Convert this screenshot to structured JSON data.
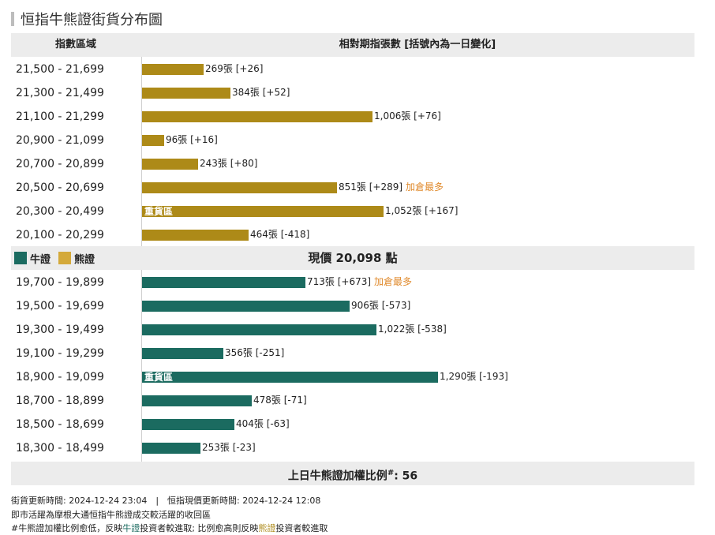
{
  "title": "恒指牛熊證街貨分布圖",
  "header": {
    "left": "指數區域",
    "right": "相對期指張數 [括號內為一日變化]"
  },
  "legend": {
    "bull": "牛證",
    "bear": "熊證",
    "bull_color": "#1b6b60",
    "bear_color": "#ad8a18"
  },
  "price_label": "現價 20,098 點",
  "ratio": {
    "prefix": "上日牛熊證加權比例",
    "mark": "#",
    "suffix": ": 56"
  },
  "footer": {
    "line1": "街貨更新時間: 2024-12-24 23:04　|　恒指現價更新時間: 2024-12-24 12:08",
    "line2": "即市活躍為摩根大通恒指牛熊證成交較活躍的收回區",
    "line3_a": "#牛熊證加權比例愈低，反映",
    "line3_b": "牛證",
    "line3_c": "投資者較進取; 比例愈高則反映",
    "line3_d": "熊證",
    "line3_e": "投資者較進取"
  },
  "chart_data": {
    "type": "bar",
    "orientation": "horizontal",
    "title": "恒指牛熊證街貨分布圖",
    "xlabel": "相對期指張數 [括號內為一日變化]",
    "ylabel": "指數區域",
    "current_price": 20098,
    "series": [
      {
        "name": "熊證",
        "color": "#ad8a18",
        "rows": [
          {
            "range": "21,500 - 21,699",
            "value": 269,
            "text": "269張 [+26]",
            "tag": "",
            "inner": ""
          },
          {
            "range": "21,300 - 21,499",
            "value": 384,
            "text": "384張 [+52]",
            "tag": "",
            "inner": ""
          },
          {
            "range": "21,100 - 21,299",
            "value": 1006,
            "text": "1,006張 [+76]",
            "tag": "",
            "inner": ""
          },
          {
            "range": "20,900 - 21,099",
            "value": 96,
            "text": "96張 [+16]",
            "tag": "",
            "inner": ""
          },
          {
            "range": "20,700 - 20,899",
            "value": 243,
            "text": "243張 [+80]",
            "tag": "",
            "inner": ""
          },
          {
            "range": "20,500 - 20,699",
            "value": 851,
            "text": "851張 [+289]",
            "tag": "加倉最多",
            "inner": ""
          },
          {
            "range": "20,300 - 20,499",
            "value": 1052,
            "text": "1,052張 [+167]",
            "tag": "",
            "inner": "重貨區"
          },
          {
            "range": "20,100 - 20,299",
            "value": 464,
            "text": "464張 [-418]",
            "tag": "",
            "inner": ""
          }
        ]
      },
      {
        "name": "牛證",
        "color": "#1b6b60",
        "rows": [
          {
            "range": "19,700 - 19,899",
            "value": 713,
            "text": "713張 [+673]",
            "tag": "加倉最多",
            "inner": ""
          },
          {
            "range": "19,500 - 19,699",
            "value": 906,
            "text": "906張 [-573]",
            "tag": "",
            "inner": ""
          },
          {
            "range": "19,300 - 19,499",
            "value": 1022,
            "text": "1,022張 [-538]",
            "tag": "",
            "inner": ""
          },
          {
            "range": "19,100 - 19,299",
            "value": 356,
            "text": "356張 [-251]",
            "tag": "",
            "inner": ""
          },
          {
            "range": "18,900 - 19,099",
            "value": 1290,
            "text": "1,290張 [-193]",
            "tag": "",
            "inner": "重貨區"
          },
          {
            "range": "18,700 - 18,899",
            "value": 478,
            "text": "478張 [-71]",
            "tag": "",
            "inner": ""
          },
          {
            "range": "18,500 - 18,699",
            "value": 404,
            "text": "404張 [-63]",
            "tag": "",
            "inner": ""
          },
          {
            "range": "18,300 - 18,499",
            "value": 253,
            "text": "253張 [-23]",
            "tag": "",
            "inner": ""
          }
        ]
      }
    ]
  }
}
